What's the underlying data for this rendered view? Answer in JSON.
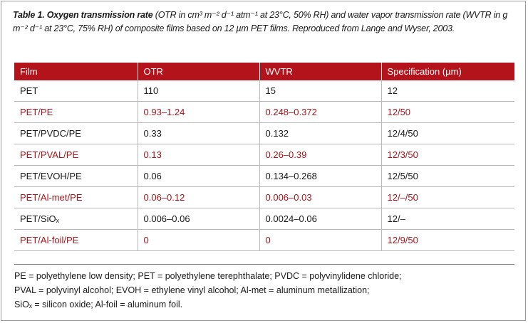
{
  "caption": {
    "label": "Table 1. Oxygen transmission rate",
    "text": "(OTR in cm³ m⁻² d⁻¹ atm⁻¹ at 23°C, 50% RH) and water vapor transmission rate (WVTR in g m⁻² d⁻¹ at 23°C, 75% RH) of composite films based on 12 µm PET films. Reproduced from Lange and Wyser, 2003."
  },
  "table": {
    "header": [
      "Film",
      "OTR",
      "WVTR",
      "Specification (µm)"
    ],
    "rows": [
      [
        "PET",
        "110",
        "15",
        "12"
      ],
      [
        "PET/PE",
        "0.93–1.24",
        "0.248–0.372",
        "12/50"
      ],
      [
        "PET/PVDC/PE",
        "0.33",
        "0.132",
        "12/4/50"
      ],
      [
        "PET/PVAL/PE",
        "0.13",
        "0.26–0.39",
        "12/3/50"
      ],
      [
        "PET/EVOH/PE",
        "0.06",
        "0.134–0.268",
        "12/5/50"
      ],
      [
        "PET/Al-met/PE",
        "0.06–0.12",
        "0.006–0.03",
        "12/–/50"
      ],
      [
        "PET/SiOₓ",
        "0.006–0.06",
        "0.0024–0.06",
        "12/–"
      ],
      [
        "PET/Al-foil/PE",
        "0",
        "0",
        "12/9/50"
      ]
    ]
  },
  "footnote": [
    "PE = polyethylene low density; PET = polyethylene terephthalate; PVDC = polyvinylidene chloride;",
    "PVAL = polyvinyl alcohol; EVOH = ethylene vinyl alcohol; Al-met = aluminum metallization;",
    "SiOₓ = silicon oxide; Al-foil = aluminum foil."
  ]
}
